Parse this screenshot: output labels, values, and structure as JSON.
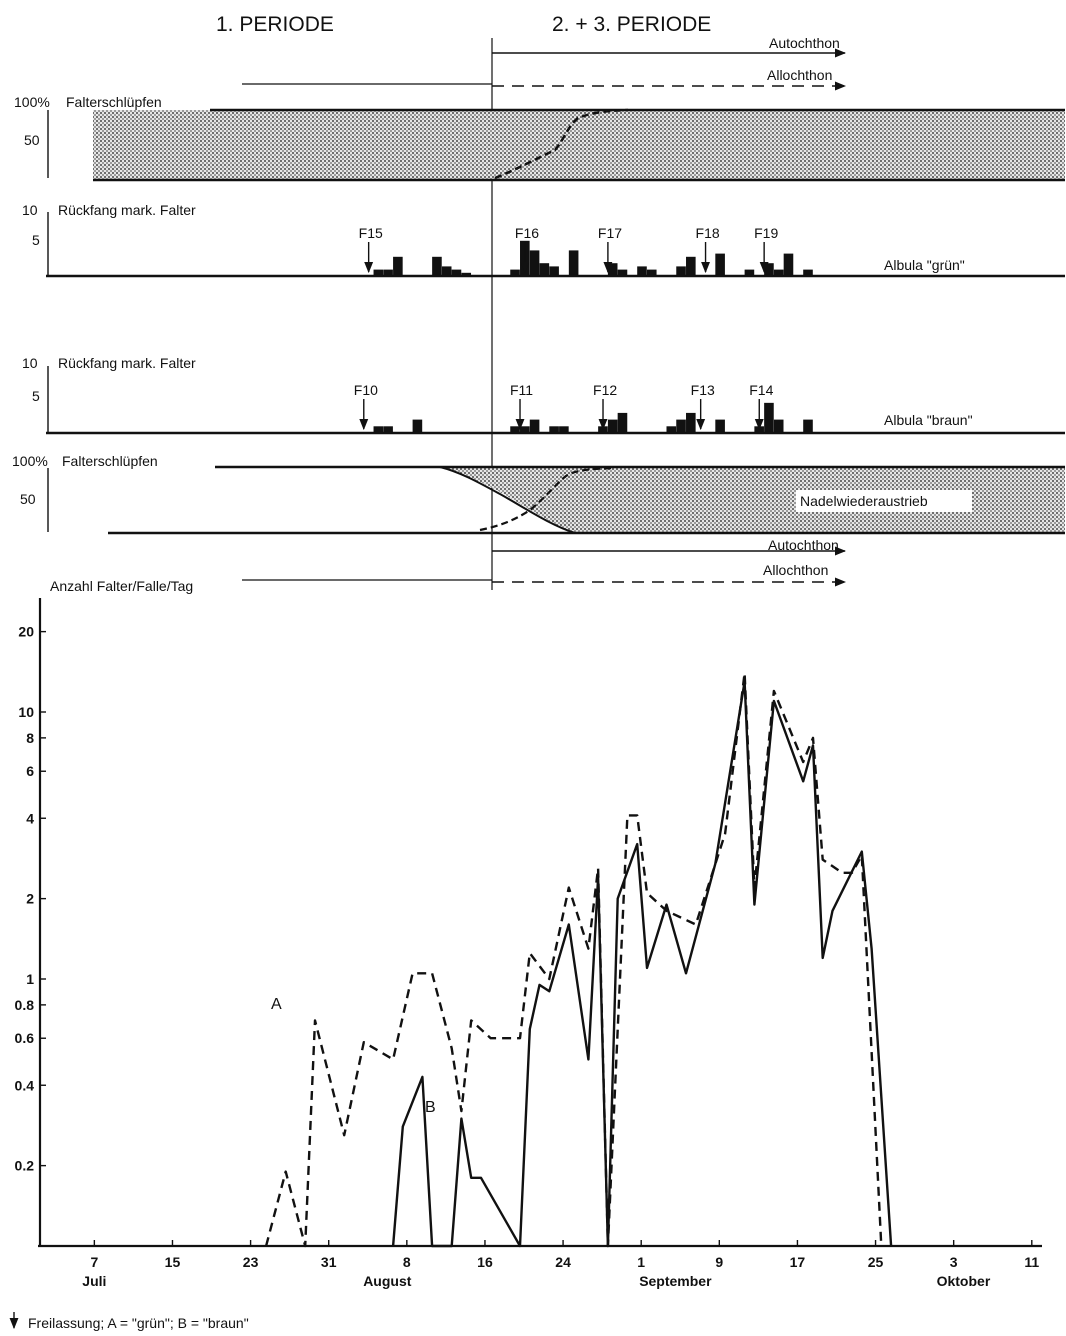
{
  "header": {
    "period1": "1. PERIODE",
    "period23": "2. + 3. PERIODE",
    "autochthon": "Autochthon",
    "allochthon": "Allochthon"
  },
  "panels": {
    "emergence_top": {
      "pct100": "100%",
      "label": "Falterschlüpfen",
      "pct50": "50"
    },
    "recapture_green": {
      "y10": "10",
      "y5": "5",
      "label": "Rückfang mark. Falter",
      "series": "Albula \"grün\"",
      "releases": [
        "F15",
        "F16",
        "F17",
        "F18",
        "F19"
      ],
      "bars": [
        {
          "day": 36,
          "v": 1
        },
        {
          "day": 37,
          "v": 1
        },
        {
          "day": 38,
          "v": 3
        },
        {
          "day": 42,
          "v": 3
        },
        {
          "day": 43,
          "v": 1.5
        },
        {
          "day": 44,
          "v": 1
        },
        {
          "day": 45,
          "v": 0.5
        },
        {
          "day": 50,
          "v": 1
        },
        {
          "day": 51,
          "v": 5.5
        },
        {
          "day": 52,
          "v": 4
        },
        {
          "day": 53,
          "v": 2
        },
        {
          "day": 54,
          "v": 1.5
        },
        {
          "day": 56,
          "v": 4
        },
        {
          "day": 60,
          "v": 2
        },
        {
          "day": 61,
          "v": 1
        },
        {
          "day": 63,
          "v": 1.5
        },
        {
          "day": 64,
          "v": 1
        },
        {
          "day": 67,
          "v": 1.5
        },
        {
          "day": 68,
          "v": 3
        },
        {
          "day": 71,
          "v": 3.5
        },
        {
          "day": 74,
          "v": 1
        },
        {
          "day": 76,
          "v": 2
        },
        {
          "day": 77,
          "v": 1
        },
        {
          "day": 78,
          "v": 3.5
        },
        {
          "day": 80,
          "v": 1
        }
      ],
      "release_days": [
        35.5,
        51.5,
        60,
        70,
        76
      ]
    },
    "recapture_brown": {
      "y10": "10",
      "y5": "5",
      "label": "Rückfang mark. Falter",
      "series": "Albula \"braun\"",
      "releases": [
        "F10",
        "F11",
        "F12",
        "F13",
        "F14"
      ],
      "bars": [
        {
          "day": 36,
          "v": 1
        },
        {
          "day": 37,
          "v": 1
        },
        {
          "day": 40,
          "v": 2
        },
        {
          "day": 50,
          "v": 1
        },
        {
          "day": 51,
          "v": 1
        },
        {
          "day": 52,
          "v": 2
        },
        {
          "day": 54,
          "v": 1
        },
        {
          "day": 55,
          "v": 1
        },
        {
          "day": 59,
          "v": 1
        },
        {
          "day": 60,
          "v": 2
        },
        {
          "day": 61,
          "v": 3
        },
        {
          "day": 66,
          "v": 1
        },
        {
          "day": 67,
          "v": 2
        },
        {
          "day": 68,
          "v": 3
        },
        {
          "day": 71,
          "v": 2
        },
        {
          "day": 75,
          "v": 1
        },
        {
          "day": 76,
          "v": 4.5
        },
        {
          "day": 77,
          "v": 2
        },
        {
          "day": 80,
          "v": 2
        }
      ],
      "release_days": [
        35,
        51,
        59.5,
        69.5,
        75.5
      ]
    },
    "emergence_bottom": {
      "pct100": "100%",
      "label": "Falterschlüpfen",
      "pct50": "50",
      "note": "Nadelwiederaustrieb"
    }
  },
  "chart_data": {
    "type": "line",
    "title": "",
    "ylabel": "Anzahl Falter/Falle/Tag",
    "yscale": "log",
    "ylim": [
      0.1,
      25
    ],
    "yticks": [
      "20",
      "10",
      "8",
      "6",
      "4",
      "2",
      "1",
      "0.8",
      "0.6",
      "0.4",
      "0.2"
    ],
    "ytick_values": [
      20,
      10,
      8,
      6,
      4,
      2,
      1,
      0.8,
      0.6,
      0.4,
      0.2
    ],
    "xticks": [
      {
        "label": "7",
        "day": 7
      },
      {
        "label": "15",
        "day": 15
      },
      {
        "label": "23",
        "day": 23
      },
      {
        "label": "31",
        "day": 31
      },
      {
        "label": "8",
        "day": 39
      },
      {
        "label": "16",
        "day": 47
      },
      {
        "label": "24",
        "day": 55
      },
      {
        "label": "1",
        "day": 63
      },
      {
        "label": "9",
        "day": 71
      },
      {
        "label": "17",
        "day": 79
      },
      {
        "label": "25",
        "day": 87
      },
      {
        "label": "3",
        "day": 95
      },
      {
        "label": "11",
        "day": 103
      }
    ],
    "months": [
      {
        "label": "Juli",
        "day": 7
      },
      {
        "label": "August",
        "day": 37
      },
      {
        "label": "September",
        "day": 66.5
      },
      {
        "label": "Oktober",
        "day": 96
      }
    ],
    "series": [
      {
        "name": "A",
        "style": "dashed",
        "points": [
          [
            25,
            0.1
          ],
          [
            27,
            0.19
          ],
          [
            29,
            0.1
          ],
          [
            30,
            0.7
          ],
          [
            33,
            0.26
          ],
          [
            35,
            0.58
          ],
          [
            38,
            0.5
          ],
          [
            40,
            1.05
          ],
          [
            42,
            1.05
          ],
          [
            44,
            0.55
          ],
          [
            45,
            0.32
          ],
          [
            46,
            0.7
          ],
          [
            48,
            0.6
          ],
          [
            51,
            0.6
          ],
          [
            52,
            1.25
          ],
          [
            54,
            1.0
          ],
          [
            56,
            2.2
          ],
          [
            58,
            1.3
          ],
          [
            59,
            2.6
          ],
          [
            60,
            0.1
          ],
          [
            62,
            4.1
          ],
          [
            63,
            4.1
          ],
          [
            64,
            2.1
          ],
          [
            66,
            1.8
          ],
          [
            69,
            1.6
          ],
          [
            72,
            3.5
          ],
          [
            74,
            14
          ],
          [
            75,
            2.2
          ],
          [
            77,
            12
          ],
          [
            80,
            6.5
          ],
          [
            81,
            8
          ],
          [
            82,
            2.8
          ],
          [
            84,
            2.5
          ],
          [
            85,
            2.5
          ],
          [
            86,
            2.9
          ],
          [
            88,
            0.1
          ]
        ]
      },
      {
        "name": "B",
        "style": "solid",
        "points": [
          [
            38,
            0.1
          ],
          [
            39,
            0.28
          ],
          [
            41,
            0.43
          ],
          [
            42,
            0.1
          ],
          [
            44,
            0.1
          ],
          [
            45,
            0.3
          ],
          [
            46,
            0.18
          ],
          [
            47,
            0.18
          ],
          [
            51,
            0.1
          ],
          [
            52,
            0.65
          ],
          [
            53,
            0.95
          ],
          [
            54,
            0.9
          ],
          [
            56,
            1.6
          ],
          [
            58,
            0.5
          ],
          [
            59,
            2.4
          ],
          [
            60,
            0.1
          ],
          [
            61,
            2.0
          ],
          [
            63,
            3.2
          ],
          [
            64,
            1.1
          ],
          [
            66,
            1.9
          ],
          [
            68,
            1.05
          ],
          [
            71,
            2.7
          ],
          [
            74,
            13
          ],
          [
            75,
            1.9
          ],
          [
            77,
            11
          ],
          [
            80,
            5.5
          ],
          [
            81,
            7.5
          ],
          [
            82,
            1.2
          ],
          [
            83,
            1.8
          ],
          [
            86,
            3.0
          ],
          [
            87,
            1.3
          ],
          [
            89,
            0.1
          ]
        ]
      }
    ],
    "annotations": [
      "A",
      "B"
    ]
  },
  "footer": {
    "legend_text": "Freilassung;  A = \"grün\";  B = \"braun\""
  }
}
